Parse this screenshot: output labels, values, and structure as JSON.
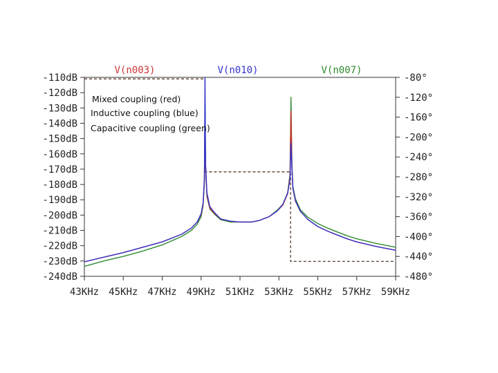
{
  "chart_data": {
    "type": "line",
    "x_unit": "KHz",
    "xlim": [
      43,
      59
    ],
    "x_ticks": [
      "43KHz",
      "45KHz",
      "47KHz",
      "49KHz",
      "51KHz",
      "53KHz",
      "55KHz",
      "57KHz",
      "59KHz"
    ],
    "y_left": {
      "ylim": [
        -240,
        -110
      ],
      "ticks": [
        "-110dB",
        "-120dB",
        "-130dB",
        "-140dB",
        "-150dB",
        "-160dB",
        "-170dB",
        "-180dB",
        "-190dB",
        "-200dB",
        "-210dB",
        "-220dB",
        "-230dB",
        "-240dB"
      ]
    },
    "y_right": {
      "ylim": [
        -480,
        -80
      ],
      "ticks": [
        "-80°",
        "-120°",
        "-160°",
        "-200°",
        "-240°",
        "-280°",
        "-320°",
        "-360°",
        "-400°",
        "-440°",
        "-480°"
      ]
    },
    "grid": false,
    "annotations": [
      "Mixed coupling (red)",
      "Inductive coupling (blue)",
      "Capacitive coupling (green)"
    ],
    "series": [
      {
        "name": "V(n003)",
        "color": "#cc3333",
        "x": [
          43,
          44,
          45,
          46,
          47,
          48,
          48.5,
          48.8,
          49.0,
          49.1,
          49.17,
          49.2,
          49.23,
          49.3,
          49.45,
          49.7,
          50.0,
          50.5,
          51.0,
          51.3,
          51.6,
          52.0,
          52.5,
          52.9,
          53.2,
          53.45,
          53.57,
          53.62,
          53.67,
          53.72,
          53.85,
          54.1,
          54.5,
          55.0,
          55.5,
          56.0,
          56.5,
          57.0,
          58.0,
          59.0
        ],
        "y": [
          -230.5,
          -227.5,
          -224.5,
          -221,
          -217.5,
          -212.5,
          -208.5,
          -204.5,
          -199.5,
          -193,
          -178,
          -130,
          -168,
          -187,
          -195.5,
          -199,
          -202.5,
          -204,
          -204.5,
          -204.5,
          -204.5,
          -203.5,
          -201,
          -197.5,
          -193.5,
          -186,
          -175,
          -132,
          -170,
          -183,
          -191,
          -197.5,
          -203,
          -207.5,
          -210.5,
          -213,
          -215.5,
          -217.5,
          -220.5,
          -223
        ]
      },
      {
        "name": "V(n010)",
        "color": "#3333cc",
        "x": [
          43,
          44,
          45,
          46,
          47,
          48,
          48.5,
          48.8,
          49.0,
          49.1,
          49.17,
          49.2,
          49.23,
          49.3,
          49.45,
          49.7,
          50.0,
          50.5,
          51.0,
          51.3,
          51.6,
          52.0,
          52.5,
          52.9,
          53.2,
          53.45,
          53.57,
          53.62,
          53.67,
          53.72,
          53.85,
          54.1,
          54.5,
          55.0,
          55.5,
          56.0,
          56.5,
          57.0,
          58.0,
          59.0
        ],
        "y": [
          -230.5,
          -227.5,
          -224.5,
          -221,
          -217.5,
          -212.5,
          -208.5,
          -204.5,
          -199,
          -192,
          -176,
          -110,
          -166,
          -185.5,
          -194.5,
          -198.5,
          -202.5,
          -204,
          -204.5,
          -204.5,
          -204.5,
          -203.5,
          -201,
          -197.5,
          -193,
          -185.5,
          -177,
          -153,
          -169,
          -182.5,
          -190.5,
          -197.5,
          -203,
          -207.5,
          -210.5,
          -213,
          -215.5,
          -217.5,
          -220.5,
          -223
        ]
      },
      {
        "name": "V(n007)",
        "color": "#2f8a2f",
        "x": [
          43,
          44,
          45,
          46,
          47,
          48,
          48.5,
          48.8,
          49.0,
          49.1,
          49.17,
          49.2,
          49.23,
          49.3,
          49.45,
          49.7,
          50.0,
          50.5,
          51.0,
          51.3,
          51.6,
          52.0,
          52.5,
          52.9,
          53.2,
          53.45,
          53.57,
          53.62,
          53.67,
          53.72,
          53.85,
          54.1,
          54.5,
          55.0,
          55.5,
          56.0,
          56.5,
          57.0,
          58.0,
          59.0
        ],
        "y": [
          -233.5,
          -230,
          -227,
          -223.5,
          -219.5,
          -214,
          -210,
          -206,
          -201,
          -194,
          -179,
          -127,
          -169,
          -188,
          -196,
          -199.5,
          -203,
          -204.5,
          -204.5,
          -204.5,
          -204.5,
          -203.5,
          -201,
          -197,
          -193,
          -185.5,
          -173,
          -123,
          -167,
          -181.5,
          -189.5,
          -196.5,
          -201.5,
          -205.5,
          -208.5,
          -211,
          -213.5,
          -215.5,
          -218.5,
          -221
        ]
      }
    ],
    "phase_trace": {
      "color": "#5a3a2a",
      "x": [
        43,
        49.2,
        49.2,
        53.6,
        53.6,
        59
      ],
      "deg": [
        -83,
        -83,
        -270,
        -270,
        -450,
        -450
      ]
    }
  }
}
